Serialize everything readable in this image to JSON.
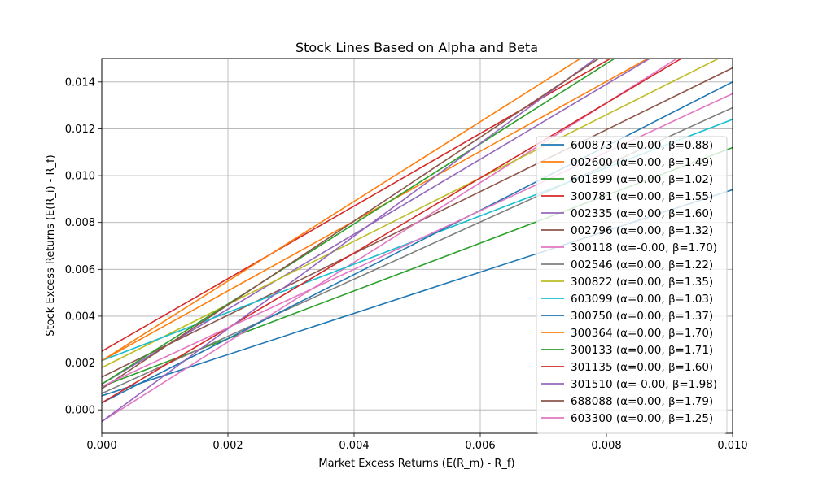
{
  "chart_data": {
    "type": "line",
    "title": "Stock Lines Based on Alpha and Beta",
    "xlabel": "Market Excess Returns (E(R_m) - R_f)",
    "ylabel": "Stock Excess Returns (E(R_i) - R_f)",
    "xlim": [
      0,
      0.01
    ],
    "ylim": [
      -0.001,
      0.015
    ],
    "x_ticks": [
      "0.000",
      "0.002",
      "0.004",
      "0.006",
      "0.008",
      "0.010"
    ],
    "y_ticks": [
      "0.000",
      "0.002",
      "0.004",
      "0.006",
      "0.008",
      "0.010",
      "0.012",
      "0.014"
    ],
    "grid": true,
    "legend_position": "center-right",
    "series": [
      {
        "name": "600873 (α=0.00, β=0.88)",
        "color": "#1f77b4",
        "intercept": 0.0006,
        "slope": 0.88
      },
      {
        "name": "002600 (α=0.00, β=1.49)",
        "color": "#ff7f0e",
        "intercept": 0.0021,
        "slope": 1.49
      },
      {
        "name": "601899 (α=0.00, β=1.02)",
        "color": "#2ca02c",
        "intercept": 0.001,
        "slope": 1.02
      },
      {
        "name": "300781 (α=0.00, β=1.55)",
        "color": "#d62728",
        "intercept": 0.0025,
        "slope": 1.55
      },
      {
        "name": "002335 (α=0.00, β=1.60)",
        "color": "#9467bd",
        "intercept": 0.0011,
        "slope": 1.6
      },
      {
        "name": "002796 (α=0.00, β=1.32)",
        "color": "#8c564b",
        "intercept": 0.0014,
        "slope": 1.32
      },
      {
        "name": "300118 (α=-0.00, β=1.70)",
        "color": "#e377c2",
        "intercept": -0.0005,
        "slope": 1.7
      },
      {
        "name": "002546 (α=0.00, β=1.22)",
        "color": "#7f7f7f",
        "intercept": 0.0007,
        "slope": 1.22
      },
      {
        "name": "300822 (α=0.00, β=1.35)",
        "color": "#bcbd22",
        "intercept": 0.0018,
        "slope": 1.35
      },
      {
        "name": "603099 (α=0.00, β=1.03)",
        "color": "#17becf",
        "intercept": 0.0021,
        "slope": 1.03
      },
      {
        "name": "300750 (α=0.00, β=1.37)",
        "color": "#1f77b4",
        "intercept": 0.0003,
        "slope": 1.37
      },
      {
        "name": "300364 (α=0.00, β=1.70)",
        "color": "#ff7f0e",
        "intercept": 0.0021,
        "slope": 1.7
      },
      {
        "name": "300133 (α=0.00, β=1.71)",
        "color": "#2ca02c",
        "intercept": 0.0011,
        "slope": 1.71
      },
      {
        "name": "301135 (α=0.00, β=1.60)",
        "color": "#d62728",
        "intercept": 0.0003,
        "slope": 1.6
      },
      {
        "name": "301510 (α=-0.00, β=1.98)",
        "color": "#9467bd",
        "intercept": -0.0005,
        "slope": 1.98
      },
      {
        "name": "688088 (α=0.00, β=1.79)",
        "color": "#8c564b",
        "intercept": 0.0009,
        "slope": 1.79
      },
      {
        "name": "603300 (α=0.00, β=1.25)",
        "color": "#e377c2",
        "intercept": 0.001,
        "slope": 1.25
      }
    ]
  }
}
